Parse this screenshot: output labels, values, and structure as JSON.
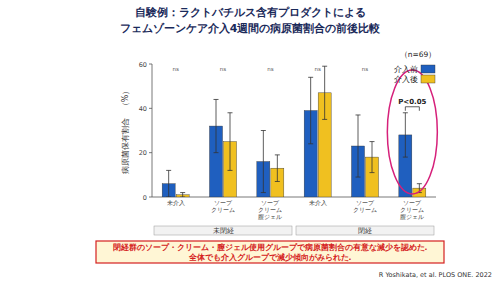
{
  "chart_data": {
    "type": "bar",
    "title": "自験例：ラクトバチルス含有プロダクトによる",
    "subtitle": "フェムゾーンケア介入4週間の病原菌割合の前後比較",
    "sample_note": "（n=69）",
    "y_label": "病原菌保有割合　（%）",
    "categories": [
      "未介入",
      "ソープ\nクリーム",
      "ソープ\nクリーム\n膣ジェル",
      "未介入",
      "ソープ\nクリーム",
      "ソープ\nクリーム\n膣ジェル"
    ],
    "groups": [
      {
        "label": "未閉経",
        "categories": [
          0,
          1,
          2
        ]
      },
      {
        "label": "閉経",
        "categories": [
          3,
          4,
          5
        ]
      }
    ],
    "series": [
      {
        "name": "介入前",
        "color": "#1f5fbf",
        "values": [
          6,
          32,
          16,
          39,
          23,
          28
        ],
        "errors": [
          6,
          12,
          14,
          15,
          14,
          10
        ]
      },
      {
        "name": "介入後",
        "color": "#f0c020",
        "values": [
          1,
          25,
          13,
          47,
          18,
          4
        ],
        "errors": [
          1,
          13,
          6,
          12,
          7,
          2
        ]
      }
    ],
    "annotations": [
      {
        "text": "ns",
        "category": 0
      },
      {
        "text": "ns",
        "category": 1
      },
      {
        "text": "ns",
        "category": 2
      },
      {
        "text": "ns",
        "category": 3
      },
      {
        "text": "ns",
        "category": 4
      },
      {
        "text": "P<0.05",
        "category": 5
      }
    ],
    "ylim": [
      0,
      60
    ],
    "yticks": [
      0,
      20,
      40,
      60
    ],
    "legend": "upper right",
    "conclusion": [
      "閉経群のソープ・クリーム・膣ジェル使用グループで病原菌割合の有意な減少を認めた.",
      "全体でも介入グループで減少傾向がみられた."
    ],
    "citation": "R Yoshikata, et al. PLOS ONE. 2022"
  }
}
